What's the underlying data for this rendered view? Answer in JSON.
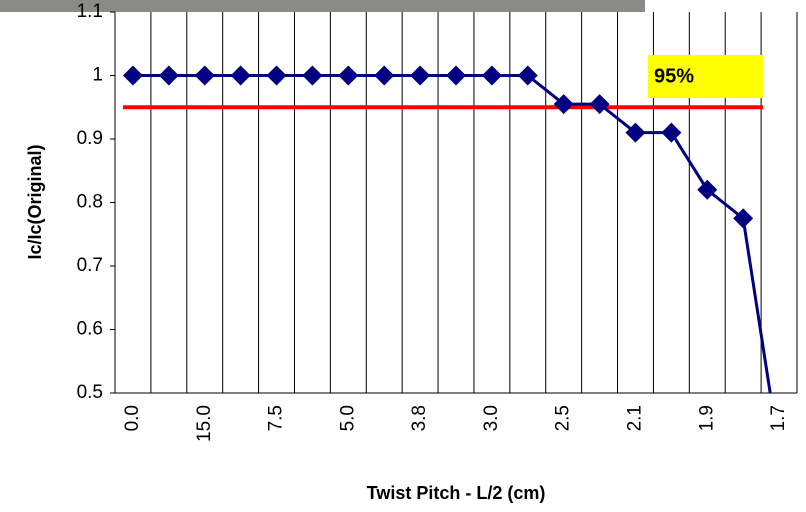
{
  "chart_data": {
    "type": "line",
    "x_label": "Twist Pitch - L/2 (cm)",
    "y_label": "Ic/Ic(Original)",
    "categories": [
      "0.0",
      null,
      "15.0",
      null,
      "7.5",
      null,
      "5.0",
      null,
      "3.8",
      null,
      "3.0",
      null,
      "2.5",
      null,
      "2.1",
      null,
      "1.9",
      null,
      "1.7"
    ],
    "series": [
      {
        "color": "#000080",
        "values": [
          1,
          1,
          1,
          1,
          1,
          1,
          1,
          1,
          1,
          1,
          1,
          1,
          0.955,
          0.955,
          0.91,
          0.91,
          0.82,
          0.775,
          0.41
        ]
      }
    ],
    "ylim": [
      0.5,
      1.1
    ],
    "yticks": [
      0.5,
      0.6,
      0.7,
      0.8,
      0.9,
      1,
      1.1
    ],
    "grid": "vertical",
    "reference_line": {
      "value": 0.95,
      "color": "#ff0000",
      "label": "95%",
      "label_background": "#ffff00",
      "label_color": "#ff0000"
    }
  }
}
